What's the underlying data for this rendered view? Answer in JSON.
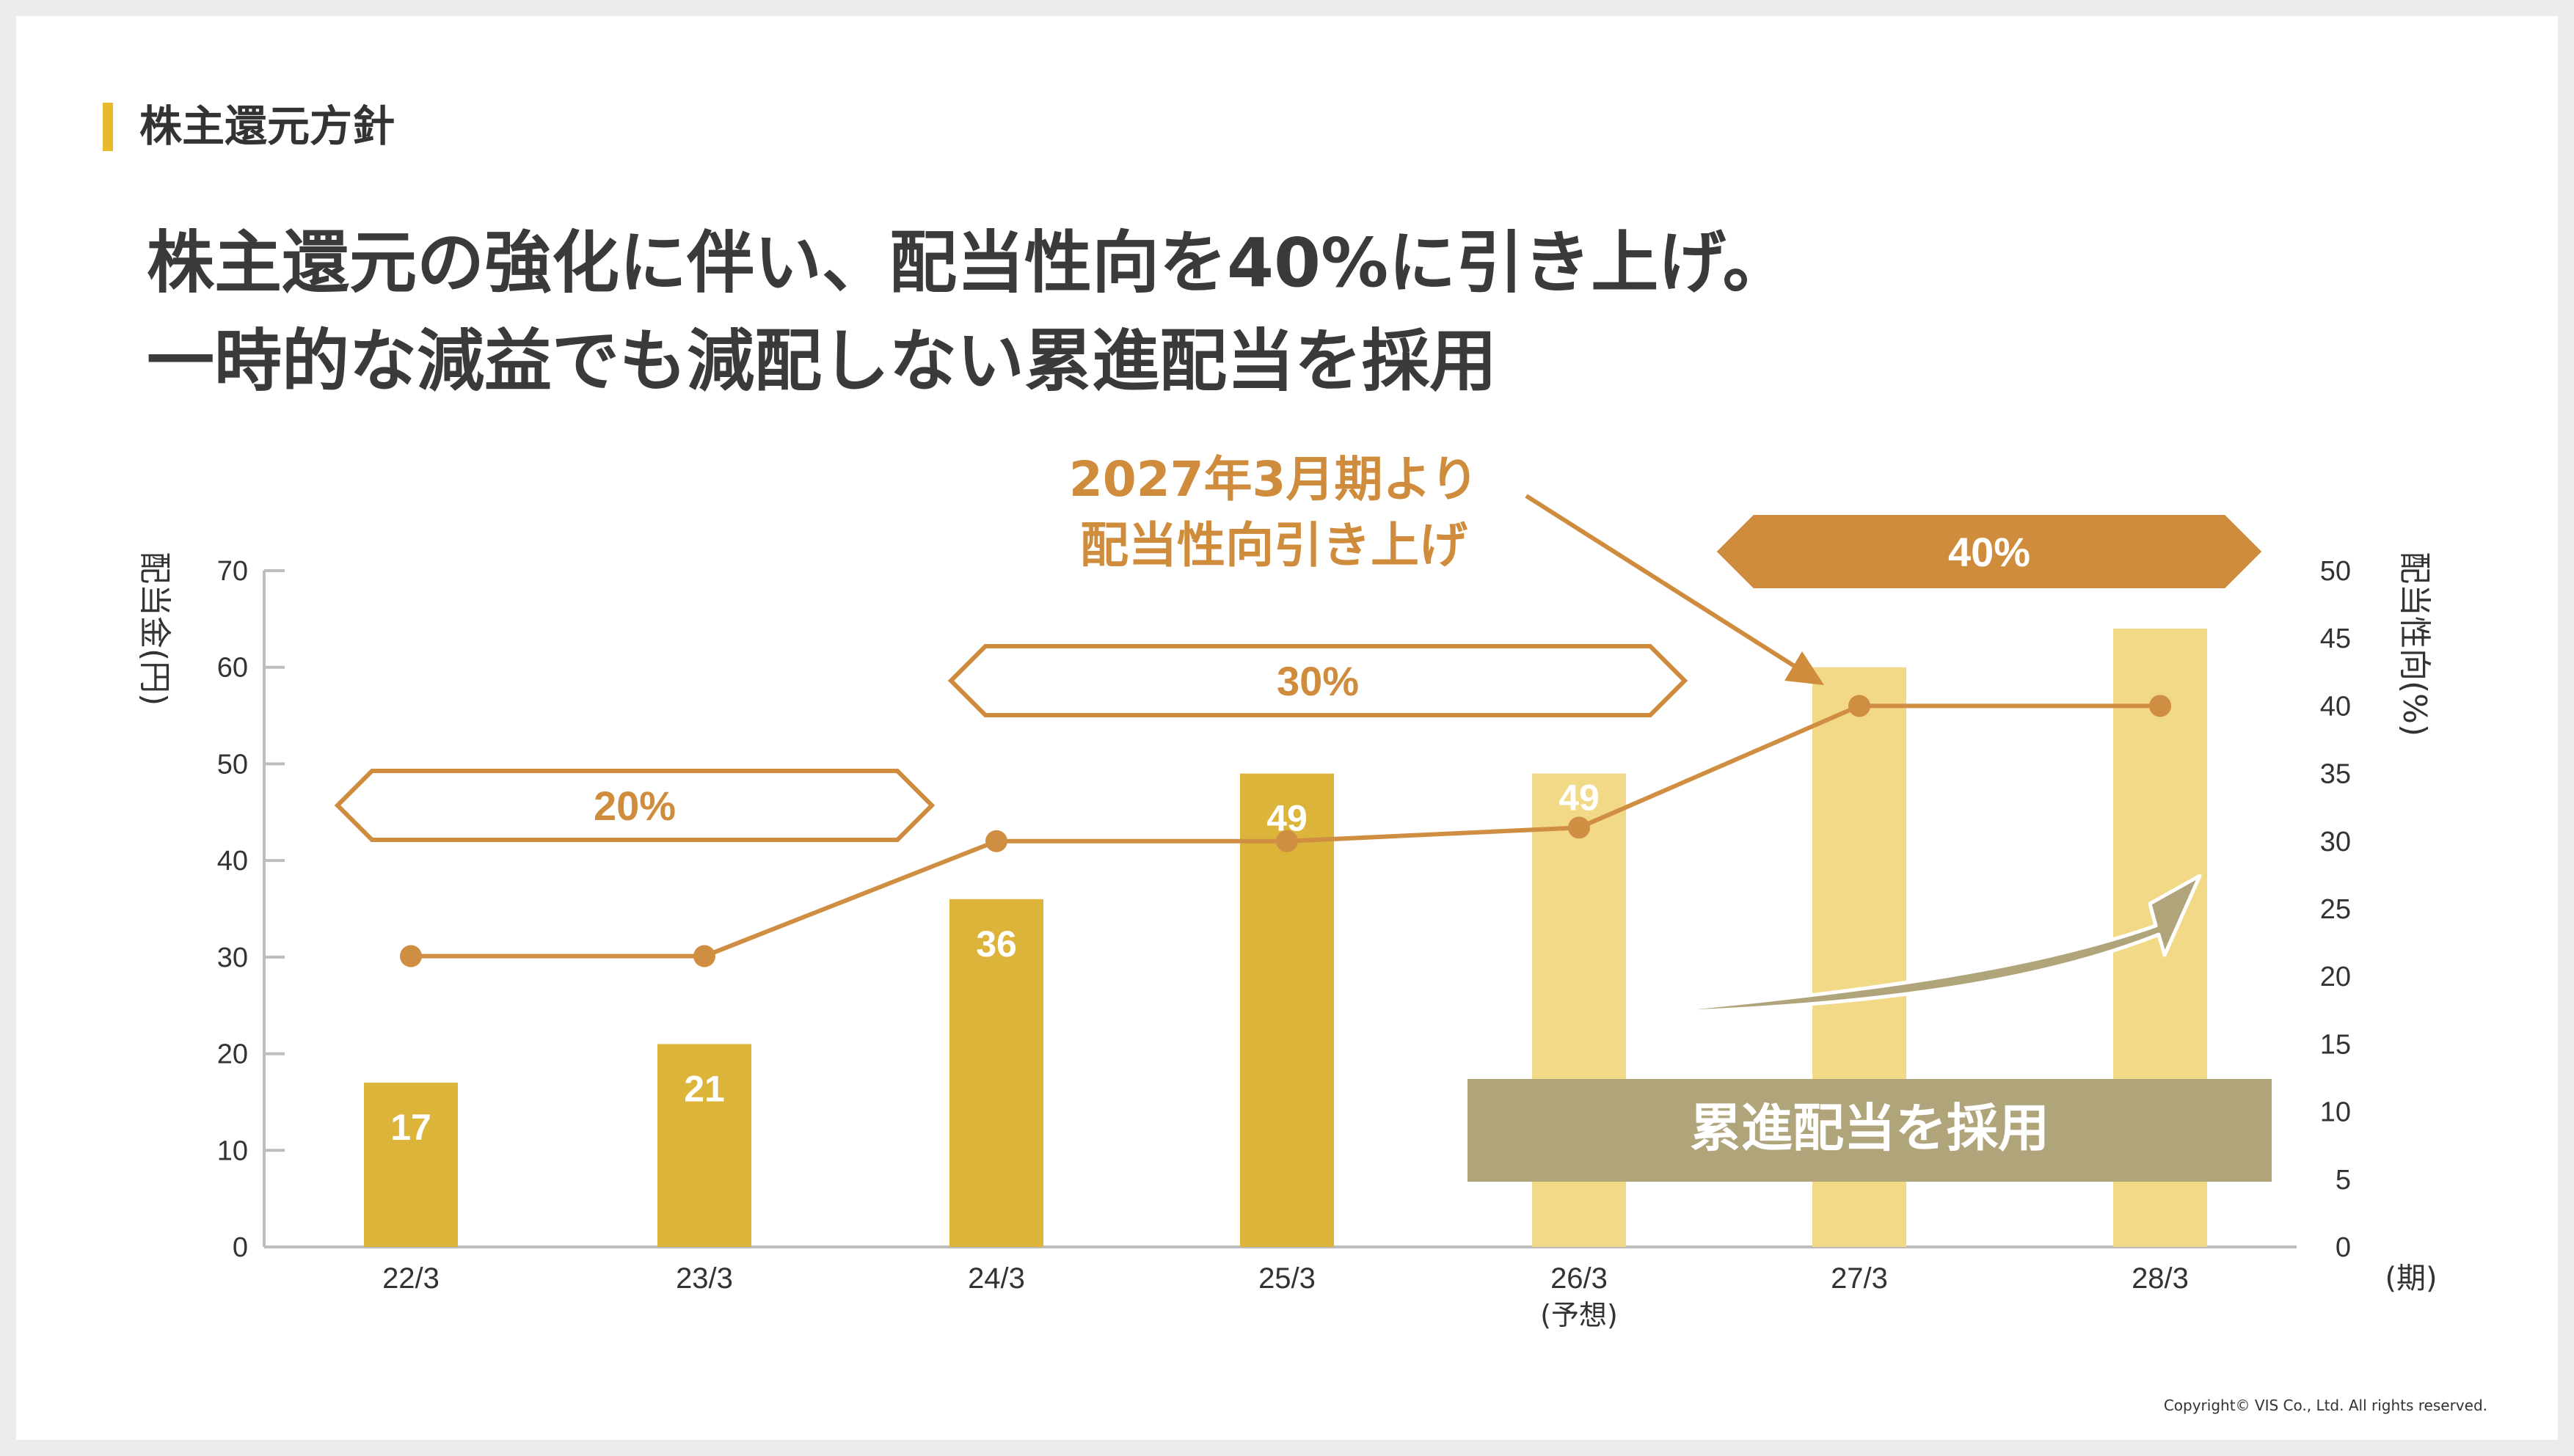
{
  "section_title": "株主還元方針",
  "headline": {
    "line1": "株主還元の強化に伴い、配当性向を40%に引き上げ。",
    "line2": "一時的な減益でも減配しない累進配当を採用"
  },
  "copyright": "Copyright© VIS Co., Ltd. All rights reserved.",
  "colors": {
    "bar_actual": "#dcb43a",
    "bar_forecast": "#f2d987",
    "line": "#d08e42",
    "accent": "#cf8c3d",
    "arrow": "#b0a47b",
    "section_bar": "#e8b92a"
  },
  "chart_data": {
    "type": "bar",
    "categories": [
      "22/3",
      "23/3",
      "24/3",
      "25/3",
      "26/3",
      "27/3",
      "28/3"
    ],
    "category_sublabels": [
      "",
      "",
      "",
      "",
      "(予想)",
      "",
      ""
    ],
    "x_unit_label": "(期)",
    "series": [
      {
        "name": "配当金(円)",
        "type": "bar",
        "axis": "left",
        "values": [
          17,
          21,
          36,
          49,
          49,
          60,
          64
        ],
        "data_labels": [
          "17",
          "21",
          "36",
          "49",
          "49",
          "",
          ""
        ],
        "forecast_from_index": 4
      },
      {
        "name": "配当性向(%)",
        "type": "line",
        "axis": "right",
        "values": [
          21.5,
          21.5,
          30,
          30,
          31,
          40,
          40
        ]
      }
    ],
    "ylabel_left": "配当金(円)",
    "ylabel_right": "配当性向(%)",
    "ylim_left": [
      0,
      70
    ],
    "yticks_left": [
      0,
      10,
      20,
      30,
      40,
      50,
      60,
      70
    ],
    "ylim_right": [
      0,
      50
    ],
    "yticks_right": [
      0,
      5,
      10,
      15,
      20,
      25,
      30,
      35,
      40,
      45,
      50
    ],
    "grid": false,
    "annotations": {
      "band_20": "20%",
      "band_30": "30%",
      "band_40": "40%",
      "callout_line1": "2027年3月期より",
      "callout_line2": "配当性向引き上げ",
      "progressive_label": "累進配当を採用"
    }
  }
}
